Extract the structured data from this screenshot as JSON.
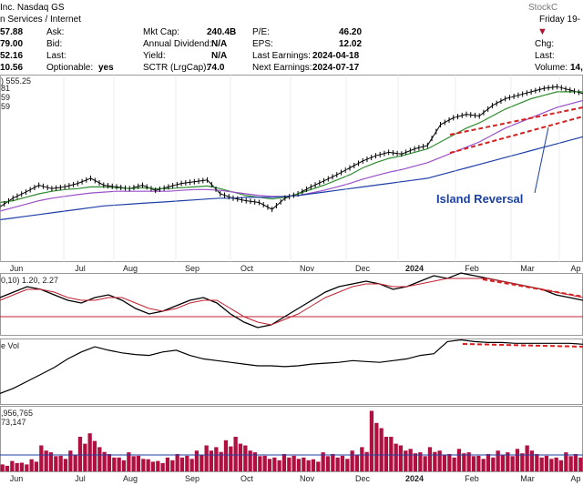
{
  "header": {
    "company_suffix": "Inc.  Nasdaq GS",
    "sector": "n Services / Internet",
    "watermark": "StockC",
    "date": "Friday 19-",
    "col1": [
      "57.88",
      "79.00",
      "52.16",
      "10.56"
    ],
    "col2_labels": [
      "Ask:",
      "Bid:",
      "Last:",
      "Optionable:"
    ],
    "optionable": "yes",
    "col3_labels": [
      "Mkt Cap:",
      "Annual Dividend:",
      "Yield:",
      "SCTR (LrgCap):"
    ],
    "col3_values": [
      "240.4B",
      "N/A",
      "N/A",
      "74.0"
    ],
    "col4_labels": [
      "P/E:",
      "EPS:",
      "Last Earnings:",
      "Next Earnings:"
    ],
    "col4_values": [
      "46.20",
      "12.02",
      "2024-04-18",
      "2024-07-17"
    ],
    "col5_labels": [
      "Chg:",
      "Last:",
      "Volume:"
    ],
    "volume": "14,"
  },
  "panels": {
    "price_legend": [
      ") 555.25",
      "81",
      "59",
      "59"
    ],
    "macd_legend": "0,10) 1.20, 2.27",
    "vol_legend": "e Vol",
    "volume_legend": [
      ",956,765",
      "73,147"
    ]
  },
  "annotation": "Island Reversal",
  "x_axis_months": [
    "Jun",
    "Jul",
    "Aug",
    "Sep",
    "Oct",
    "Nov",
    "Dec",
    "2024",
    "Feb",
    "Mar",
    "Ap"
  ],
  "colors": {
    "price": "#000000",
    "ma_fast": "#2e8b2e",
    "ma_mid": "#9a4fc9",
    "ma_slow": "#1f3fa8",
    "trend": "#d42020",
    "volume": "#b01040",
    "macd_signal": "#c02030"
  },
  "chart_data": [
    {
      "type": "line",
      "title": "",
      "series": [
        {
          "values": [
            45,
            55,
            62,
            70,
            66,
            68,
            72,
            78,
            70,
            68,
            66,
            70,
            64,
            68,
            72,
            74,
            76,
            60,
            55,
            52,
            50,
            42,
            55,
            60,
            68,
            75,
            82,
            90,
            98,
            104,
            108,
            106,
            112,
            116,
            140,
            148,
            152,
            150,
            162,
            170,
            174,
            178,
            182,
            184,
            180,
            176
          ]
        },
        {
          "values": [
            50,
            52,
            56,
            60,
            63,
            65,
            66,
            68,
            68,
            67,
            66,
            67,
            66,
            66,
            67,
            68,
            69,
            66,
            62,
            58,
            56,
            54,
            56,
            60,
            65,
            70,
            76,
            82,
            90,
            96,
            101,
            104,
            108,
            112,
            120,
            128,
            136,
            142,
            150,
            158,
            164,
            170,
            174,
            178,
            178,
            178
          ]
        },
        {
          "values": [
            40,
            44,
            48,
            52,
            55,
            57,
            59,
            61,
            62,
            63,
            63,
            63,
            63,
            63,
            64,
            65,
            65,
            64,
            62,
            60,
            58,
            57,
            57,
            58,
            61,
            64,
            68,
            72,
            77,
            81,
            85,
            88,
            92,
            96,
            102,
            108,
            114,
            120,
            128,
            136,
            142,
            148,
            154,
            160,
            164,
            168
          ]
        },
        {
          "values": [
            30,
            32,
            34,
            36,
            38,
            40,
            42,
            44,
            46,
            47,
            48,
            49,
            50,
            51,
            52,
            53,
            54,
            55,
            55,
            56,
            56,
            56,
            57,
            58,
            60,
            62,
            64,
            66,
            68,
            70,
            72,
            74,
            76,
            78,
            82,
            86,
            90,
            94,
            98,
            102,
            106,
            110,
            114,
            118,
            122,
            126
          ]
        }
      ],
      "annotations": [
        "Island Reversal"
      ]
    },
    {
      "type": "line",
      "series": [
        {
          "values": [
            2,
            4,
            6,
            5,
            3,
            1,
            0,
            2,
            3,
            1,
            -2,
            -4,
            -3,
            -1,
            1,
            2,
            0,
            -4,
            -7,
            -9,
            -8,
            -5,
            -2,
            1,
            4,
            6,
            7,
            8,
            7,
            5,
            6,
            8,
            10,
            9,
            11,
            10,
            9,
            8,
            7,
            6,
            5,
            3,
            2,
            1
          ]
        },
        {
          "values": [
            1,
            3,
            5,
            5,
            4,
            2,
            1,
            1,
            2,
            2,
            0,
            -2,
            -3,
            -2,
            0,
            1,
            1,
            -2,
            -5,
            -7,
            -8,
            -6,
            -4,
            -1,
            2,
            4,
            6,
            7,
            7,
            6,
            6,
            7,
            8,
            9,
            9,
            9,
            9,
            8,
            7,
            6,
            5,
            4,
            3,
            2
          ]
        }
      ]
    },
    {
      "type": "line",
      "series": [
        {
          "values": [
            8,
            14,
            22,
            30,
            38,
            48,
            56,
            62,
            58,
            55,
            53,
            52,
            56,
            58,
            52,
            48,
            46,
            44,
            42,
            40,
            40,
            39,
            40,
            42,
            43,
            44,
            46,
            45,
            44,
            46,
            48,
            52,
            54,
            68,
            70,
            68,
            67,
            67,
            66,
            66,
            66,
            66,
            66,
            65
          ]
        }
      ]
    },
    {
      "type": "bar",
      "values": [
        8,
        12,
        10,
        14,
        30,
        22,
        18,
        24,
        40,
        44,
        28,
        20,
        16,
        22,
        18,
        14,
        12,
        16,
        20,
        18,
        24,
        30,
        28,
        36,
        40,
        30,
        22,
        18,
        16,
        20,
        18,
        16,
        14,
        22,
        20,
        18,
        24,
        28,
        70,
        50,
        40,
        30,
        26,
        22,
        28,
        24,
        20,
        26,
        22,
        18,
        20,
        24,
        22,
        26,
        30,
        20,
        18,
        16,
        22,
        20
      ]
    }
  ]
}
